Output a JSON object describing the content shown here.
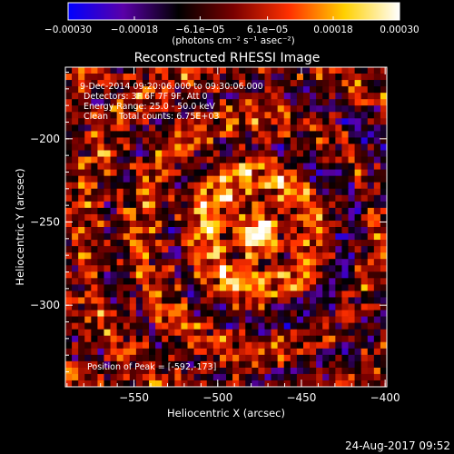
{
  "chart_data": {
    "type": "heatmap",
    "title": "Reconstructed RHESSI Image",
    "xlabel": "Heliocentric X (arcsec)",
    "ylabel": "Heliocentric Y (arcsec)",
    "xlim": [
      -591,
      -399
    ],
    "ylim": [
      -349,
      -157
    ],
    "xticks": [
      -550,
      -500,
      -450,
      -400
    ],
    "xtick_labels": [
      "−550",
      "−500",
      "−450",
      "−400"
    ],
    "yticks": [
      -200,
      -250,
      -300
    ],
    "ytick_labels": [
      "−200",
      "−250",
      "−300"
    ],
    "colorbar": {
      "range": [
        -0.0003,
        0.0003
      ],
      "ticks": [
        -0.0003,
        -0.00018,
        -6.1e-05,
        6.1e-05,
        0.00018,
        0.0003
      ],
      "tick_labels": [
        "−0.00030",
        "−0.00018",
        "−6.1e−05",
        "6.1e−05",
        "0.00018",
        "0.00030"
      ],
      "unit_label": "(photons cm⁻² s⁻¹ asec⁻²)",
      "colors": [
        "#0000ff",
        "#5a00a8",
        "#000000",
        "#7a0000",
        "#ff3000",
        "#ffd000",
        "#ffffff"
      ]
    },
    "annotations": [
      "9-Dec-2014 09:20:06.000 to 09:30:06.000",
      "Detectors: 3F 6F 7F 9F, Att 0",
      "Energy Range: 25.0 - 50.0 keV",
      "Clean    Total counts: 6.75E+03"
    ],
    "peak_label": "Position of Peak = [-592,-173]",
    "grid": false
  },
  "footer": {
    "timestamp": "24-Aug-2017 09:52"
  }
}
